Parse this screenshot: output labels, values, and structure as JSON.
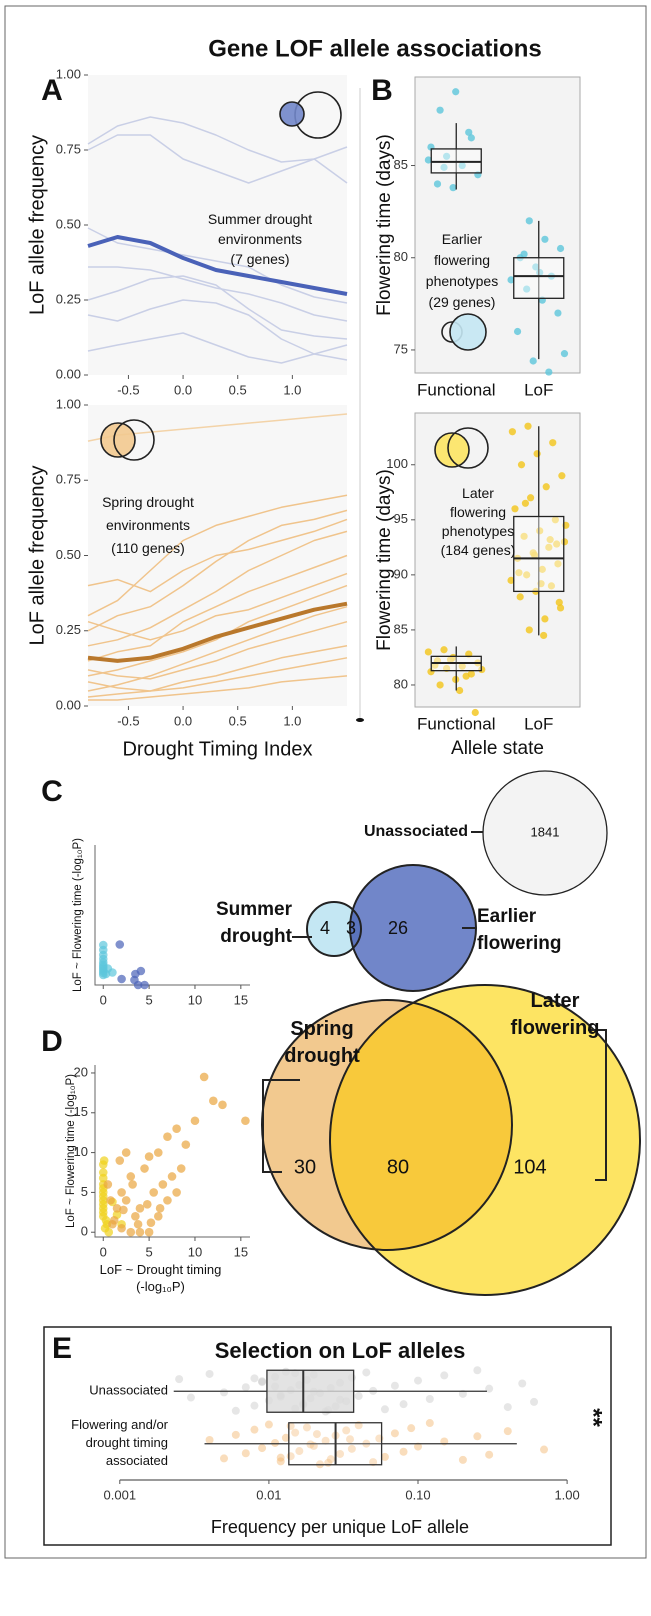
{
  "title": "Gene LOF allele associations",
  "chart_data": [
    {
      "panel": "A",
      "type": "line",
      "ylabel": "LoF allele frequency",
      "annotation": "Summer drought\nenvironments\n(7 genes)",
      "x": [
        -0.87,
        -0.6,
        -0.3,
        0,
        0.3,
        0.6,
        0.9,
        1.2,
        1.5
      ],
      "xlim": [
        -0.87,
        1.5
      ],
      "xticks": [
        -0.5,
        {
          "value": 0,
          "label": "0.0"
        },
        0.5,
        {
          "value": 1,
          "label": "1.0"
        }
      ],
      "ylim": [
        0,
        1
      ],
      "yticks": [
        {
          "value": 0,
          "label": "0.00"
        },
        {
          "value": 0.25,
          "label": "0.25"
        },
        {
          "value": 0.5,
          "label": "0.50"
        },
        {
          "value": 0.75,
          "label": "0.75"
        },
        {
          "value": 1,
          "label": "1.00"
        }
      ],
      "series": [
        {
          "color": "#c9cfe6",
          "linewidth": 1.5,
          "values": [
            0.77,
            0.83,
            0.86,
            0.84,
            0.8,
            0.75,
            0.71,
            0.72,
            0.76
          ]
        },
        {
          "color": "#c9cfe6",
          "linewidth": 1.5,
          "values": [
            0.75,
            0.8,
            0.8,
            0.72,
            0.68,
            0.64,
            0.68,
            0.72,
            0.64
          ]
        },
        {
          "color": "#c9cfe6",
          "linewidth": 1.5,
          "values": [
            0.49,
            0.44,
            0.42,
            0.4,
            0.38,
            0.36,
            0.3,
            0.26,
            0.24
          ]
        },
        {
          "color": "#c9cfe6",
          "linewidth": 1.5,
          "values": [
            0.36,
            0.36,
            0.35,
            0.32,
            0.29,
            0.27,
            0.24,
            0.2,
            0.18
          ]
        },
        {
          "color": "#c9cfe6",
          "linewidth": 1.5,
          "values": [
            0.25,
            0.28,
            0.32,
            0.33,
            0.3,
            0.22,
            0.15,
            0.13,
            0.12
          ]
        },
        {
          "color": "#c9cfe6",
          "linewidth": 1.5,
          "values": [
            0.2,
            0.18,
            0.22,
            0.25,
            0.24,
            0.2,
            0.12,
            0.07,
            0.05
          ]
        },
        {
          "color": "#c9cfe6",
          "linewidth": 1.5,
          "values": [
            0.08,
            0.1,
            0.12,
            0.14,
            0.1,
            0.06,
            0.04,
            0.07,
            0.1
          ]
        },
        {
          "color": "#4a62b8",
          "linewidth": 4,
          "values": [
            0.43,
            0.46,
            0.44,
            0.39,
            0.35,
            0.33,
            0.31,
            0.29,
            0.27
          ]
        }
      ]
    },
    {
      "type": "line",
      "ylabel": "LoF allele frequency",
      "xlabel": "Drought Timing Index",
      "annotation": "Spring drought\nenvironments\n(110 genes)",
      "x": [
        -0.87,
        -0.6,
        -0.3,
        0,
        0.3,
        0.6,
        0.9,
        1.2,
        1.5
      ],
      "xlim": [
        -0.87,
        1.5
      ],
      "xticks": [
        -0.5,
        {
          "value": 0,
          "label": "0.0"
        },
        0.5,
        {
          "value": 1,
          "label": "1.0"
        }
      ],
      "ylim": [
        0,
        1
      ],
      "yticks": [
        {
          "value": 0,
          "label": "0.00"
        },
        {
          "value": 0.25,
          "label": "0.25"
        },
        {
          "value": 0.5,
          "label": "0.50"
        },
        {
          "value": 0.75,
          "label": "0.75"
        },
        {
          "value": 1,
          "label": "1.00"
        }
      ],
      "series": [
        {
          "color": "#f3d3a8",
          "linewidth": 1.5,
          "values": [
            0.88,
            0.9,
            0.91,
            0.92,
            0.93,
            0.94,
            0.95,
            0.96,
            0.97
          ]
        },
        {
          "color": "#f0c48c",
          "linewidth": 1.5,
          "values": [
            0.3,
            0.35,
            0.45,
            0.55,
            0.6,
            0.63,
            0.66,
            0.68,
            0.7
          ]
        },
        {
          "color": "#f0c48c",
          "linewidth": 1.5,
          "values": [
            0.25,
            0.3,
            0.33,
            0.4,
            0.48,
            0.55,
            0.6,
            0.62,
            0.65
          ]
        },
        {
          "color": "#f0c48c",
          "linewidth": 1.5,
          "values": [
            0.2,
            0.22,
            0.26,
            0.32,
            0.38,
            0.45,
            0.5,
            0.55,
            0.58
          ]
        },
        {
          "color": "#f0c48c",
          "linewidth": 1.5,
          "values": [
            0.15,
            0.18,
            0.2,
            0.28,
            0.33,
            0.38,
            0.42,
            0.46,
            0.5
          ]
        },
        {
          "color": "#f0c48c",
          "linewidth": 1.5,
          "values": [
            0.28,
            0.25,
            0.22,
            0.25,
            0.3,
            0.32,
            0.36,
            0.4,
            0.44
          ]
        },
        {
          "color": "#f0c48c",
          "linewidth": 1.5,
          "values": [
            0.1,
            0.12,
            0.15,
            0.18,
            0.22,
            0.28,
            0.32,
            0.36,
            0.4
          ]
        },
        {
          "color": "#f0c48c",
          "linewidth": 1.5,
          "values": [
            0.05,
            0.07,
            0.1,
            0.14,
            0.18,
            0.22,
            0.26,
            0.3,
            0.33
          ]
        },
        {
          "color": "#f0c48c",
          "linewidth": 1.5,
          "values": [
            0.12,
            0.1,
            0.09,
            0.12,
            0.15,
            0.19,
            0.22,
            0.25,
            0.28
          ]
        },
        {
          "color": "#f0c48c",
          "linewidth": 1.5,
          "values": [
            0.03,
            0.04,
            0.05,
            0.08,
            0.1,
            0.13,
            0.16,
            0.18,
            0.2
          ]
        },
        {
          "color": "#f0c48c",
          "linewidth": 1.5,
          "values": [
            0.08,
            0.06,
            0.05,
            0.06,
            0.08,
            0.1,
            0.12,
            0.14,
            0.16
          ]
        },
        {
          "color": "#f0c48c",
          "linewidth": 1.5,
          "values": [
            0.02,
            0.02,
            0.03,
            0.04,
            0.05,
            0.06,
            0.08,
            0.09,
            0.1
          ]
        },
        {
          "color": "#f0c48c",
          "linewidth": 1.5,
          "values": [
            0.4,
            0.42,
            0.38,
            0.45,
            0.5,
            0.52,
            0.55,
            0.58,
            0.62
          ]
        },
        {
          "color": "#b9782c",
          "linewidth": 4,
          "values": [
            0.16,
            0.15,
            0.16,
            0.19,
            0.23,
            0.26,
            0.29,
            0.32,
            0.34
          ]
        }
      ]
    },
    {
      "panel": "B",
      "type": "box",
      "ylabel": "Flowering time (days)",
      "annotation": "Earlier\nflowering\nphenotypes\n(29 genes)",
      "categories": [
        "Functional",
        "LoF"
      ],
      "ylim": [
        73.75,
        89.8
      ],
      "yticks": [
        75,
        80,
        85
      ],
      "color": "#5cc6db",
      "boxes": [
        {
          "whislo": 83.7,
          "q1": 84.6,
          "med": 85.2,
          "q3": 85.9,
          "whishi": 87.3,
          "points": [
            88,
            89,
            86.5,
            86,
            85.5,
            85,
            84.5,
            84,
            83.8,
            86.8,
            85.3,
            84.9
          ]
        },
        {
          "whislo": 74.5,
          "q1": 77.8,
          "med": 79,
          "q3": 80,
          "whishi": 82,
          "points": [
            82,
            81,
            80.5,
            80,
            79.5,
            79,
            78.8,
            78.3,
            77.7,
            77,
            76,
            74.4,
            73.8,
            74.8,
            80.2,
            79.2
          ]
        }
      ]
    },
    {
      "type": "box",
      "ylabel": "Flowering time (days)",
      "xlabel": "Allele state",
      "annotation": "Later\nflowering\nphenotypes\n(184 genes)",
      "categories": [
        "Functional",
        "LoF"
      ],
      "ylim": [
        78,
        104.7
      ],
      "yticks": [
        80,
        85,
        90,
        95,
        100
      ],
      "color": "#f2c418",
      "boxes": [
        {
          "whislo": 79.5,
          "q1": 81.3,
          "med": 82,
          "q3": 82.6,
          "whishi": 83.5,
          "points": [
            80,
            80.5,
            81,
            81.2,
            81.5,
            81.7,
            82,
            82.2,
            82.5,
            82.8,
            83,
            83.2,
            79.5,
            77.5,
            81.8,
            82.3,
            80.8,
            81.4
          ]
        },
        {
          "whislo": 84.5,
          "q1": 88.5,
          "med": 91.5,
          "q3": 95.3,
          "whishi": 103.5,
          "points": [
            85,
            86,
            87,
            88,
            88.5,
            89,
            89.5,
            90,
            90.5,
            91,
            91.5,
            92,
            92.5,
            93,
            93.5,
            94,
            95,
            96,
            97,
            98,
            99,
            100,
            101,
            102,
            103,
            103.5,
            84.5,
            87.5,
            90.2,
            91.8,
            93.2,
            94.5,
            96.5,
            89.2,
            92.8
          ]
        }
      ]
    },
    {
      "panel": "C",
      "type": "scatter",
      "ylabel": "LoF ~ Flowering time (-log₁₀P)",
      "xlim": [
        -0.9,
        16
      ],
      "xticks": [
        0,
        5,
        10,
        15
      ],
      "ylim": [
        0,
        28
      ],
      "series": [
        {
          "color": "#5cc6db",
          "x": [
            0,
            0,
            0,
            0,
            0,
            0,
            0,
            0,
            0,
            0,
            0.3,
            0,
            1,
            0.5
          ],
          "values": [
            8,
            7,
            6,
            5.2,
            4.5,
            4,
            3.6,
            3.2,
            2.8,
            2.4,
            2.2,
            2,
            2.5,
            3.3
          ]
        },
        {
          "color": "#4a62b8",
          "x": [
            1.8,
            2,
            3.4,
            3.8,
            4.1,
            4.5,
            3.5
          ],
          "values": [
            8.1,
            1.2,
            1,
            0,
            2.8,
            0,
            2.2
          ]
        }
      ]
    },
    {
      "type": "venn",
      "sets": [
        {
          "name": "Summer\ndrought",
          "color": "#7186c9"
        },
        {
          "name": "Earlier\nflowering",
          "color": "#c4e7f3"
        }
      ],
      "overlap_color": "#5a74bd",
      "regions": [
        4,
        3,
        26
      ],
      "unassociated": {
        "name": "Unassociated",
        "count": 1841,
        "color": "#f3f3f3"
      }
    },
    {
      "panel": "D",
      "type": "scatter",
      "ylabel": "LoF ~ Flowering time (-log₁₀P)",
      "xlabel": "LoF ~ Drought timing\n(-log₁₀P)",
      "xlim": [
        -0.9,
        16
      ],
      "xticks": [
        0,
        5,
        10,
        15
      ],
      "ylim": [
        -0.6,
        21
      ],
      "yticks": [
        0,
        5,
        10,
        15,
        20
      ],
      "series": [
        {
          "color": "#f0d21c",
          "x": [
            0,
            0,
            0,
            0,
            0,
            0,
            0,
            0,
            0,
            0,
            0,
            0,
            0.3,
            0.4,
            0.2,
            0.6,
            1,
            1.5,
            2,
            0.1
          ],
          "values": [
            8.5,
            7.5,
            6.8,
            6,
            5.5,
            5,
            4.5,
            4,
            3.5,
            3,
            2.5,
            2,
            1.5,
            1,
            0.5,
            0,
            3.8,
            2.2,
            1,
            9
          ]
        },
        {
          "color": "#e9a53e",
          "x": [
            11,
            13,
            12,
            15.5,
            10,
            8,
            7,
            9,
            8.5,
            6,
            5,
            4.5,
            7.5,
            6.5,
            3,
            2,
            2.5,
            4,
            5.5,
            3.5,
            1.5,
            1,
            2,
            3,
            4,
            6,
            5,
            7,
            8,
            2.5,
            1.8,
            3.2,
            4.8,
            0.8,
            1.2,
            2.2,
            3.8,
            5.2,
            6.2,
            0.5
          ],
          "values": [
            19.5,
            16,
            16.5,
            14,
            14,
            13,
            12,
            11,
            8,
            10,
            9.5,
            8,
            7,
            6,
            7,
            5,
            4,
            3,
            5,
            2,
            3,
            1,
            0.5,
            0,
            0,
            2,
            0,
            4,
            5,
            10,
            9,
            6,
            3.5,
            4,
            1.5,
            2.8,
            1,
            1.2,
            3,
            6
          ]
        }
      ]
    },
    {
      "type": "venn",
      "sets": [
        {
          "name": "Spring\ndrought",
          "color": "#f2c98f"
        },
        {
          "name": "Later\nflowering",
          "color": "#fde463"
        }
      ],
      "overlap_color": "#f8c93b",
      "regions": [
        30,
        80,
        104
      ]
    },
    {
      "panel": "E",
      "type": "box",
      "orientation": "horizontal",
      "title": "Selection on LoF alleles",
      "xlabel": "Frequency per unique LoF allele",
      "annotation": "**",
      "xscale": "log",
      "xlim": [
        0.00033,
        1.88
      ],
      "xticks": [
        0.001,
        0.01,
        {
          "value": 0.1,
          "label": "0.10"
        },
        {
          "value": 1,
          "label": "1.00"
        }
      ],
      "categories": [
        "Unassociated",
        "Flowering and/or\ndrought timing\nassociated"
      ],
      "boxes": [
        {
          "color": "#c8c8c8",
          "whislo": 0.0023,
          "q1": 0.0097,
          "med": 0.017,
          "q3": 0.037,
          "whishi": 0.29,
          "points": [
            0.0025,
            0.003,
            0.004,
            0.005,
            0.006,
            0.007,
            0.008,
            0.009,
            0.01,
            0.011,
            0.012,
            0.013,
            0.014,
            0.015,
            0.016,
            0.017,
            0.018,
            0.019,
            0.02,
            0.022,
            0.024,
            0.026,
            0.028,
            0.03,
            0.033,
            0.036,
            0.04,
            0.045,
            0.05,
            0.06,
            0.07,
            0.08,
            0.1,
            0.12,
            0.15,
            0.2,
            0.25,
            0.3,
            0.4,
            0.5,
            0.6,
            0.008,
            0.012,
            0.015,
            0.02,
            0.025,
            0.011,
            0.017,
            0.009,
            0.03
          ]
        },
        {
          "color": "#f2b46a",
          "whislo": 0.0037,
          "q1": 0.0136,
          "med": 0.028,
          "q3": 0.057,
          "whishi": 0.46,
          "points": [
            0.004,
            0.005,
            0.006,
            0.007,
            0.008,
            0.009,
            0.01,
            0.011,
            0.012,
            0.013,
            0.014,
            0.015,
            0.016,
            0.018,
            0.02,
            0.022,
            0.024,
            0.026,
            0.028,
            0.03,
            0.033,
            0.036,
            0.04,
            0.045,
            0.05,
            0.055,
            0.06,
            0.07,
            0.08,
            0.09,
            0.1,
            0.12,
            0.15,
            0.2,
            0.25,
            0.3,
            0.4,
            0.7,
            0.014,
            0.019,
            0.025,
            0.035,
            0.012,
            0.021
          ]
        }
      ]
    }
  ]
}
